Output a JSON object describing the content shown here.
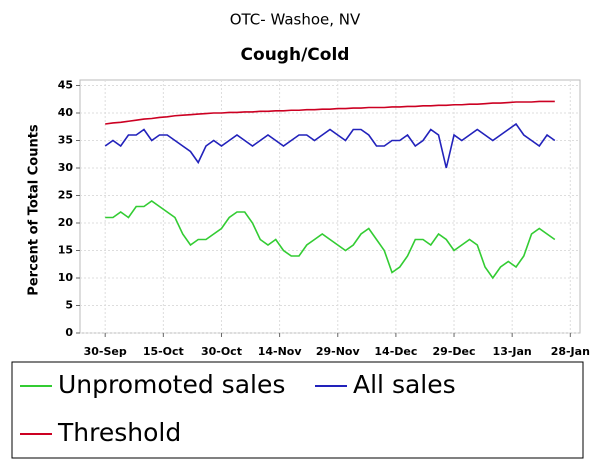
{
  "chart_data": {
    "type": "line",
    "title": "OTC- Washoe, NV",
    "subtitle": "Cough/Cold",
    "y_label": "Percent of Total Counts",
    "xlim": [
      -6.5,
      122.5
    ],
    "xticks": [
      {
        "value": 0,
        "label": "30-Sep"
      },
      {
        "value": 15,
        "label": "15-Oct"
      },
      {
        "value": 30,
        "label": "30-Oct"
      },
      {
        "value": 45,
        "label": "14-Nov"
      },
      {
        "value": 60,
        "label": "29-Nov"
      },
      {
        "value": 75,
        "label": "14-Dec"
      },
      {
        "value": 90,
        "label": "29-Dec"
      },
      {
        "value": 105,
        "label": "13-Jan"
      },
      {
        "value": 120,
        "label": "28-Jan"
      }
    ],
    "ylim": [
      0,
      46
    ],
    "yticks": [
      0,
      5,
      10,
      15,
      20,
      25,
      30,
      35,
      40,
      45
    ],
    "grid": true,
    "x": [
      0,
      2,
      4,
      6,
      8,
      10,
      12,
      14,
      16,
      18,
      20,
      22,
      24,
      26,
      28,
      30,
      32,
      34,
      36,
      38,
      40,
      42,
      44,
      46,
      48,
      50,
      52,
      54,
      56,
      58,
      60,
      62,
      64,
      66,
      68,
      70,
      72,
      74,
      76,
      78,
      80,
      82,
      84,
      86,
      88,
      90,
      92,
      94,
      96,
      98,
      100,
      102,
      104,
      106,
      108,
      110,
      112,
      114,
      116
    ],
    "series": [
      {
        "name": "Unpromoted sales",
        "color": "#33cc33",
        "values": [
          21,
          21,
          22,
          21,
          23,
          23,
          24,
          23,
          22,
          21,
          18,
          16,
          17,
          17,
          18,
          19,
          21,
          22,
          22,
          20,
          17,
          16,
          17,
          15,
          14,
          14,
          16,
          17,
          18,
          17,
          16,
          15,
          16,
          18,
          19,
          17,
          15,
          11,
          12,
          14,
          17,
          17,
          16,
          18,
          17,
          15,
          16,
          17,
          16,
          12,
          10,
          12,
          13,
          12,
          14,
          18,
          19,
          18,
          17
        ]
      },
      {
        "name": "All sales",
        "color": "#2222bb",
        "values": [
          34,
          35,
          34,
          36,
          36,
          37,
          35,
          36,
          36,
          35,
          34,
          33,
          31,
          34,
          35,
          34,
          35,
          36,
          35,
          34,
          35,
          36,
          35,
          34,
          35,
          36,
          36,
          35,
          36,
          37,
          36,
          35,
          37,
          37,
          36,
          34,
          34,
          35,
          35,
          36,
          34,
          35,
          37,
          36,
          30,
          36,
          35,
          36,
          37,
          36,
          35,
          36,
          37,
          38,
          36,
          35,
          34,
          36,
          35
        ]
      },
      {
        "name": "Threshold",
        "color": "#cc0022",
        "values": [
          38.0,
          38.2,
          38.3,
          38.5,
          38.7,
          38.9,
          39.0,
          39.2,
          39.3,
          39.5,
          39.6,
          39.7,
          39.8,
          39.9,
          40.0,
          40.0,
          40.1,
          40.1,
          40.2,
          40.2,
          40.3,
          40.3,
          40.4,
          40.4,
          40.5,
          40.5,
          40.6,
          40.6,
          40.7,
          40.7,
          40.8,
          40.8,
          40.9,
          40.9,
          41.0,
          41.0,
          41.0,
          41.1,
          41.1,
          41.2,
          41.2,
          41.3,
          41.3,
          41.4,
          41.4,
          41.5,
          41.5,
          41.6,
          41.6,
          41.7,
          41.8,
          41.8,
          41.9,
          42.0,
          42.0,
          42.0,
          42.1,
          42.1,
          42.1
        ]
      }
    ]
  }
}
